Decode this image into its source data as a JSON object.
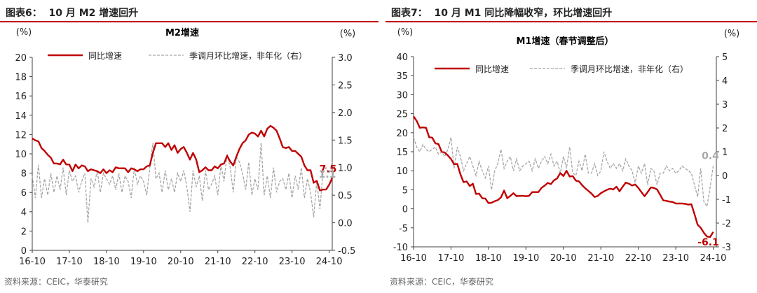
{
  "colors": {
    "title_rule": "#c00000",
    "yoy_line": "#c00000",
    "mom_line": "#a6a6a6",
    "axis": "#404040",
    "label_mom": "#a6a6a6"
  },
  "source_left": "资料来源：CEIC，华泰研究",
  "source_right": "资料来源：CEIC，华泰研究",
  "chart_data": [
    {
      "type": "line",
      "figure_label": "图表6：  10 月 M2 增速回升",
      "title": "M2增速",
      "ylabel_left": "(%)",
      "ylabel_right": "(%)",
      "ylim_left": [
        0,
        20
      ],
      "yticks_left": [
        0,
        2,
        4,
        6,
        8,
        10,
        12,
        14,
        16,
        18,
        20
      ],
      "ylim_right": [
        -0.5,
        3.0
      ],
      "yticks_right": [
        -0.5,
        0.0,
        0.5,
        1.0,
        1.5,
        2.0,
        2.5,
        3.0
      ],
      "ytick_labels_right": [
        "-0.5",
        "0.0",
        "0.5",
        "1.0",
        "1.5",
        "2.0",
        "2.5",
        "3.0"
      ],
      "xlim": [
        0,
        97
      ],
      "x_tick_labels": [
        "16-10",
        "17-10",
        "18-10",
        "19-10",
        "20-10",
        "21-10",
        "22-10",
        "23-10",
        "24-10"
      ],
      "x_tick_index": [
        0,
        12,
        24,
        36,
        48,
        60,
        72,
        84,
        96
      ],
      "legend": [
        "同比增速",
        "季调月环比增速，非年化（右）"
      ],
      "series": [
        {
          "name": "同比增速",
          "axis": "left",
          "values": [
            11.6,
            11.4,
            11.3,
            10.6,
            10.3,
            9.9,
            9.6,
            9.0,
            9.0,
            8.9,
            9.4,
            8.9,
            8.9,
            8.2,
            8.9,
            8.5,
            8.8,
            8.7,
            8.2,
            8.4,
            8.3,
            8.2,
            8.0,
            8.4,
            8.0,
            8.3,
            8.1,
            8.6,
            8.5,
            8.5,
            8.5,
            8.1,
            8.5,
            8.4,
            8.2,
            8.4,
            8.4,
            8.7,
            8.8,
            10.1,
            11.1,
            11.1,
            11.1,
            10.7,
            11.1,
            10.4,
            10.9,
            10.1,
            10.5,
            10.7,
            10.1,
            9.4,
            10.1,
            9.4,
            8.1,
            8.3,
            8.6,
            8.3,
            8.3,
            8.7,
            8.5,
            8.9,
            9.0,
            9.8,
            9.2,
            8.8,
            9.7,
            10.5,
            11.1,
            11.4,
            12.0,
            12.2,
            12.1,
            11.8,
            12.4,
            11.8,
            12.6,
            12.9,
            12.7,
            12.4,
            11.6,
            10.7,
            10.6,
            10.7,
            10.3,
            10.3,
            10.0,
            9.7,
            8.8,
            8.3,
            8.3,
            7.0,
            7.2,
            6.2,
            6.3,
            6.3,
            6.8,
            7.5
          ],
          "end_label": "7.5"
        },
        {
          "name": "季调月环比增速，非年化（右）",
          "axis": "right",
          "values": [
            0.85,
            0.45,
            1.05,
            0.45,
            0.8,
            0.5,
            0.9,
            0.55,
            0.85,
            0.6,
            1.0,
            0.5,
            0.95,
            0.75,
            0.85,
            0.55,
            0.75,
            0.9,
            0.0,
            0.8,
            0.65,
            0.95,
            0.55,
            0.9,
            0.8,
            0.7,
            0.85,
            0.6,
            0.9,
            0.55,
            0.85,
            0.75,
            0.45,
            1.0,
            0.7,
            0.85,
            0.75,
            0.5,
            1.0,
            1.45,
            0.8,
            0.9,
            0.55,
            0.95,
            0.6,
            0.8,
            0.55,
            0.9,
            0.75,
            0.95,
            0.65,
            0.2,
            0.95,
            0.65,
            0.85,
            0.4,
            0.95,
            0.6,
            0.7,
            0.85,
            0.5,
            1.05,
            0.75,
            1.25,
            1.0,
            0.55,
            1.2,
            1.1,
            0.9,
            0.6,
            1.1,
            0.5,
            0.8,
            0.6,
            1.45,
            0.5,
            0.85,
            0.45,
            1.0,
            0.55,
            0.75,
            0.8,
            0.6,
            0.9,
            0.45,
            0.85,
            0.6,
            1.0,
            0.45,
            0.8,
            0.55,
            0.1,
            0.75,
            0.25,
            0.9,
            1.0,
            0.9,
            1.1
          ],
          "end_label": "1.1"
        }
      ]
    },
    {
      "type": "line",
      "figure_label": "图表7：  10 月 M1 同比降幅收窄，环比增速回升",
      "title": "M1增速（春节调整后）",
      "ylabel_left": "(%)",
      "ylabel_right": "(%)",
      "ylim_left": [
        -10,
        40
      ],
      "yticks_left": [
        -10,
        -5,
        0,
        5,
        10,
        15,
        20,
        25,
        30,
        35,
        40
      ],
      "ylim_right": [
        -3,
        5
      ],
      "yticks_right": [
        -3,
        -2,
        -1,
        0,
        1,
        2,
        3,
        4,
        5
      ],
      "ytick_labels_right": [
        "-3",
        "-2",
        "-1",
        "0",
        "1",
        "2",
        "3",
        "4",
        "5"
      ],
      "xlim": [
        0,
        97
      ],
      "x_tick_labels": [
        "16-10",
        "17-10",
        "18-10",
        "19-10",
        "20-10",
        "21-10",
        "22-10",
        "23-10",
        "24-10"
      ],
      "x_tick_index": [
        0,
        12,
        24,
        36,
        48,
        60,
        72,
        84,
        96
      ],
      "legend": [
        "同比增速",
        "季调月环比增速，非年化（右）"
      ],
      "series": [
        {
          "name": "同比增速",
          "axis": "left",
          "values": [
            24.3,
            23.1,
            21.3,
            21.4,
            21.3,
            18.8,
            18.7,
            17.2,
            17.0,
            15.0,
            14.8,
            14.0,
            13.1,
            11.7,
            11.8,
            9.1,
            7.0,
            7.2,
            6.0,
            6.6,
            3.9,
            4.0,
            2.8,
            2.7,
            1.5,
            1.6,
            2.0,
            2.3,
            3.0,
            4.8,
            2.8,
            3.4,
            4.1,
            3.3,
            3.4,
            3.4,
            3.3,
            3.4,
            4.4,
            4.4,
            4.4,
            5.5,
            6.1,
            6.8,
            6.5,
            7.5,
            8.0,
            9.4,
            8.6,
            10.0,
            8.5,
            8.6,
            7.4,
            7.2,
            6.2,
            5.4,
            4.7,
            4.0,
            3.1,
            3.4,
            4.1,
            4.6,
            5.0,
            5.3,
            5.1,
            5.8,
            4.6,
            5.8,
            6.9,
            6.6,
            6.1,
            6.4,
            5.5,
            4.4,
            3.3,
            4.4,
            5.6,
            5.5,
            5.1,
            3.7,
            2.2,
            2.1,
            1.9,
            1.8,
            1.4,
            1.4,
            1.4,
            1.3,
            1.1,
            1.2,
            -1.4,
            -4.2,
            -5.0,
            -6.3,
            -7.3,
            -7.4,
            -6.1
          ],
          "end_label": "-6.1"
        },
        {
          "name": "季调月环比增速，非年化（右）",
          "axis": "right",
          "values": [
            1.6,
            1.2,
            1.0,
            1.3,
            1.1,
            1.0,
            1.1,
            1.2,
            0.9,
            1.0,
            0.8,
            1.1,
            1.6,
            0.3,
            1.2,
            0.8,
            0.2,
            0.5,
            0.8,
            0.4,
            0.0,
            0.6,
            0.2,
            -0.1,
            0.4,
            -0.6,
            0.2,
            0.5,
            1.1,
            0.3,
            0.6,
            0.8,
            0.2,
            0.7,
            0.2,
            0.4,
            0.5,
            0.6,
            0.2,
            0.7,
            0.3,
            0.6,
            0.8,
            0.5,
            0.9,
            0.4,
            0.6,
            0.1,
            0.8,
            0.3,
            1.2,
            0.1,
            0.0,
            0.6,
            0.2,
            0.9,
            0.1,
            0.1,
            0.5,
            0.0,
            0.2,
            1.0,
            0.6,
            0.3,
            0.5,
            0.3,
            0.5,
            0.2,
            0.7,
            0.4,
            0.2,
            -0.3,
            0.4,
            0.1,
            0.5,
            -0.4,
            0.3,
            0.2,
            -0.4,
            0.1,
            0.1,
            0.4,
            0.2,
            0.3,
            0.1,
            0.2,
            0.4,
            0.3,
            0.2,
            0.1,
            -0.4,
            -0.9,
            0.3,
            -1.1,
            -1.3,
            -0.5,
            0.4
          ],
          "end_label": "0.4"
        }
      ]
    }
  ]
}
